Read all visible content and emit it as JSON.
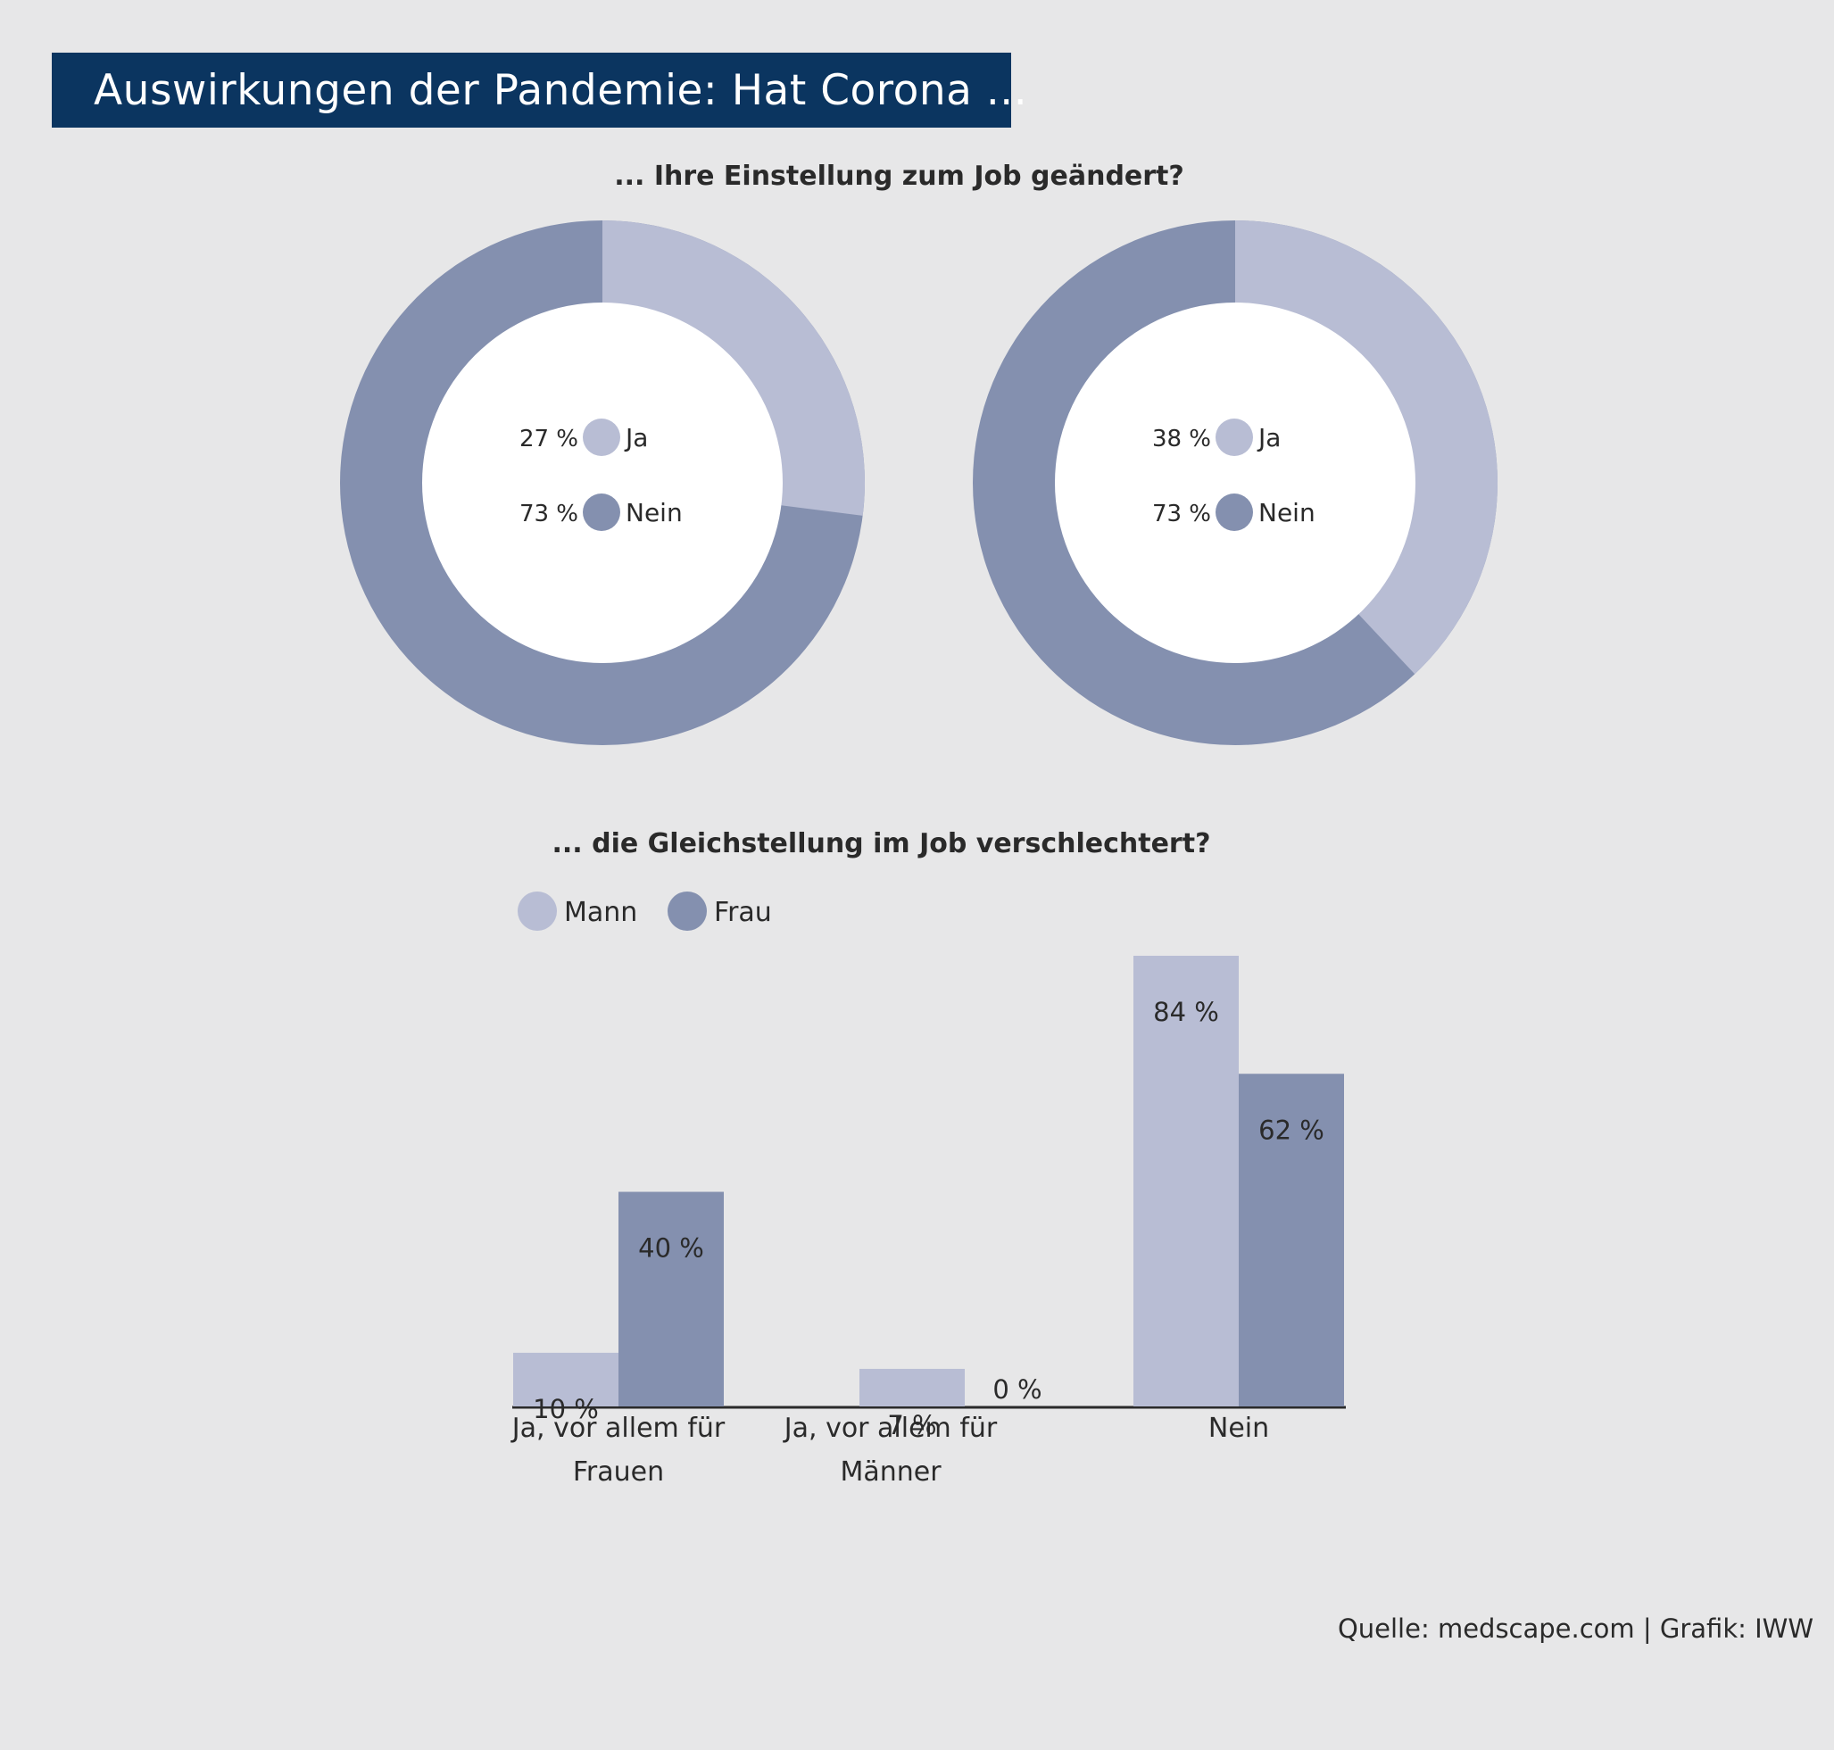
{
  "title": "Auswirkungen der Pandemie: Hat Corona ...",
  "source": "Quelle: medscape.com | Grafik: IWW",
  "colors": {
    "light": "#b8bdd4",
    "dark": "#8490af",
    "title_bg": "#0b3560",
    "background": "#e7e7e8"
  },
  "chart_data": [
    {
      "type": "pie",
      "title": "... Ihre Einstellung zum Job geändert?",
      "slices": [
        {
          "label": "Ja",
          "value": 27,
          "display": "27 %"
        },
        {
          "label": "Nein",
          "value": 73,
          "display": "73 %"
        }
      ]
    },
    {
      "type": "pie",
      "title": "",
      "slices": [
        {
          "label": "Ja",
          "value": 38,
          "display": "38 %"
        },
        {
          "label": "Nein",
          "value": 73,
          "display": "73 %"
        }
      ]
    },
    {
      "type": "bar",
      "title": "... die Gleichstellung im Job verschlechtert?",
      "categories": [
        [
          "Ja, vor allem für",
          "Frauen"
        ],
        [
          "Ja, vor allem für",
          "Männer"
        ],
        [
          "Nein"
        ]
      ],
      "series": [
        {
          "name": "Mann",
          "values": [
            10,
            7,
            84
          ],
          "labels": [
            "10 %",
            "7 %",
            "84 %"
          ]
        },
        {
          "name": "Frau",
          "values": [
            40,
            0,
            62
          ],
          "labels": [
            "40 %",
            "0 %",
            "62 %"
          ]
        }
      ],
      "legend": "top-left",
      "ylim": [
        0,
        84
      ]
    }
  ]
}
